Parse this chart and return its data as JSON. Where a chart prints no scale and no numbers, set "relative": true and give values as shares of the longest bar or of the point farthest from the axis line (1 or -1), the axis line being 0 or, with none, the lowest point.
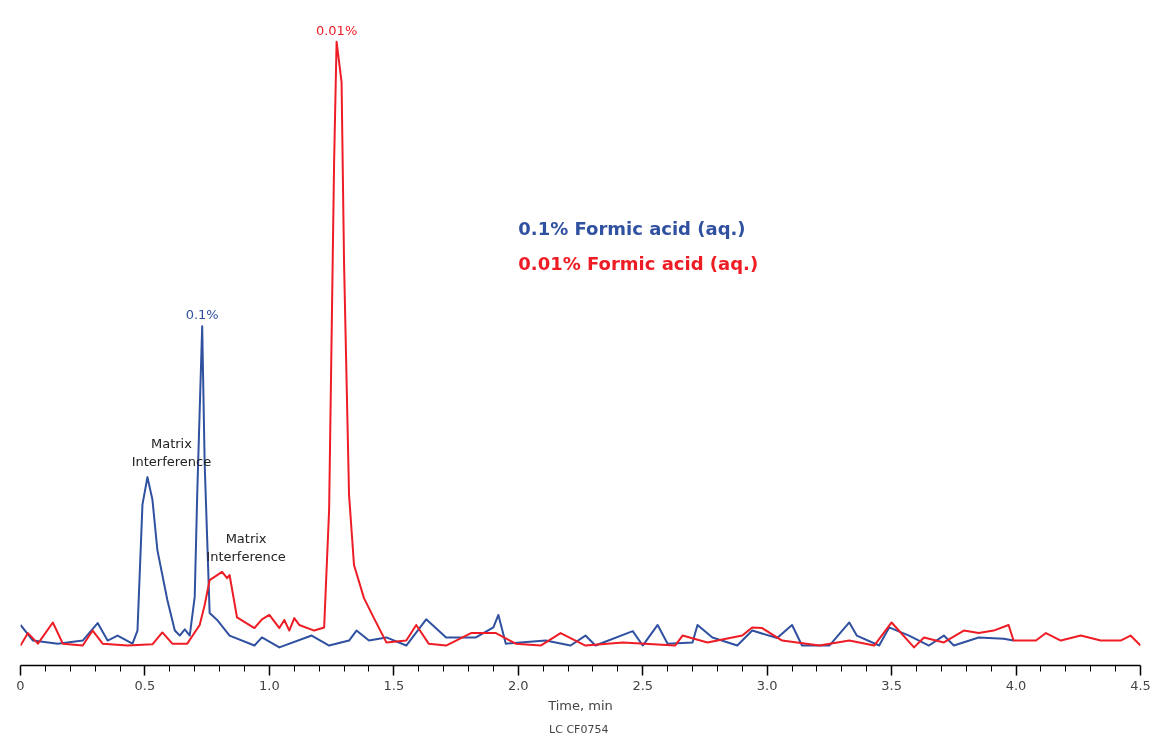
{
  "chart_data": {
    "type": "line",
    "relative": true,
    "xlabel": "Time, min",
    "xlim": [
      0,
      4.5
    ],
    "xticks": [
      0,
      {
        "value": 0.1,
        "label": null
      },
      {
        "value": 0.2,
        "label": null
      },
      {
        "value": 0.3,
        "label": null
      },
      {
        "value": 0.4,
        "label": null
      },
      0.5,
      {
        "value": 0.6,
        "label": null
      },
      {
        "value": 0.7,
        "label": null
      },
      {
        "value": 0.8,
        "label": null
      },
      {
        "value": 0.9,
        "label": null
      },
      {
        "value": 1,
        "label": "1.0"
      },
      {
        "value": 1.1,
        "label": null
      },
      {
        "value": 1.2,
        "label": null
      },
      {
        "value": 1.3,
        "label": null
      },
      {
        "value": 1.4,
        "label": null
      },
      1.5,
      {
        "value": 1.6,
        "label": null
      },
      {
        "value": 1.7,
        "label": null
      },
      {
        "value": 1.8,
        "label": null
      },
      {
        "value": 1.9,
        "label": null
      },
      {
        "value": 2,
        "label": "2.0"
      },
      {
        "value": 2.1,
        "label": null
      },
      {
        "value": 2.2,
        "label": null
      },
      {
        "value": 2.3,
        "label": null
      },
      {
        "value": 2.4,
        "label": null
      },
      2.5,
      {
        "value": 2.6,
        "label": null
      },
      {
        "value": 2.7,
        "label": null
      },
      {
        "value": 2.8,
        "label": null
      },
      {
        "value": 2.9,
        "label": null
      },
      {
        "value": 3,
        "label": "3.0"
      },
      {
        "value": 3.1,
        "label": null
      },
      {
        "value": 3.2,
        "label": null
      },
      {
        "value": 3.3,
        "label": null
      },
      {
        "value": 3.4,
        "label": null
      },
      3.5,
      {
        "value": 3.6,
        "label": null
      },
      {
        "value": 3.7,
        "label": null
      },
      {
        "value": 3.8,
        "label": null
      },
      {
        "value": 3.9,
        "label": null
      },
      {
        "value": 4,
        "label": "4.0"
      },
      {
        "value": 4.1,
        "label": null
      },
      {
        "value": 4.2,
        "label": null
      },
      {
        "value": 4.3,
        "label": null
      },
      {
        "value": 4.4,
        "label": null
      },
      4.5
    ],
    "grid": false,
    "legend": false,
    "marker": "none",
    "line_style": "solid",
    "series": [
      {
        "name": "0.1% Formic acid (aq.)",
        "color": "#3050a0",
        "x": [
          0.0,
          0.05,
          0.15,
          0.25,
          0.31,
          0.35,
          0.39,
          0.45,
          0.47,
          0.49,
          0.51,
          0.53,
          0.55,
          0.59,
          0.62,
          0.64,
          0.66,
          0.68,
          0.7,
          0.71,
          0.73,
          0.74,
          0.76,
          0.79,
          0.84,
          0.94,
          0.97,
          1.04,
          1.17,
          1.24,
          1.32,
          1.35,
          1.4,
          1.47,
          1.55,
          1.63,
          1.71,
          1.83,
          1.9,
          1.92,
          1.95,
          2.11,
          2.21,
          2.27,
          2.31,
          2.46,
          2.5,
          2.56,
          2.6,
          2.7,
          2.72,
          2.78,
          2.88,
          2.94,
          3.04,
          3.1,
          3.14,
          3.25,
          3.33,
          3.36,
          3.45,
          3.49,
          3.57,
          3.65,
          3.71,
          3.75,
          3.85,
          3.95,
          3.99
        ],
        "values": [
          0.065,
          0.04,
          0.035,
          0.04,
          0.068,
          0.04,
          0.048,
          0.035,
          0.056,
          0.258,
          0.302,
          0.266,
          0.185,
          0.105,
          0.056,
          0.048,
          0.058,
          0.048,
          0.11,
          0.274,
          0.544,
          0.323,
          0.084,
          0.073,
          0.048,
          0.032,
          0.045,
          0.029,
          0.048,
          0.032,
          0.04,
          0.056,
          0.04,
          0.045,
          0.032,
          0.074,
          0.045,
          0.045,
          0.061,
          0.081,
          0.035,
          0.04,
          0.032,
          0.048,
          0.032,
          0.055,
          0.032,
          0.065,
          0.035,
          0.037,
          0.065,
          0.045,
          0.032,
          0.056,
          0.044,
          0.065,
          0.032,
          0.032,
          0.069,
          0.048,
          0.032,
          0.061,
          0.048,
          0.032,
          0.048,
          0.032,
          0.045,
          0.043,
          0.04
        ]
      },
      {
        "name": "0.01% Formic acid (aq.)",
        "color": "#ee1c25",
        "x": [
          0.0,
          0.03,
          0.07,
          0.13,
          0.17,
          0.25,
          0.29,
          0.33,
          0.43,
          0.53,
          0.57,
          0.61,
          0.67,
          0.72,
          0.74,
          0.76,
          0.81,
          0.83,
          0.84,
          0.87,
          0.94,
          0.97,
          1.0,
          1.04,
          1.06,
          1.08,
          1.1,
          1.12,
          1.18,
          1.22,
          1.24,
          1.26,
          1.27,
          1.29,
          1.3,
          1.32,
          1.34,
          1.38,
          1.42,
          1.47,
          1.55,
          1.59,
          1.64,
          1.71,
          1.81,
          1.91,
          1.99,
          2.09,
          2.17,
          2.27,
          2.42,
          2.63,
          2.66,
          2.76,
          2.9,
          2.94,
          2.98,
          3.06,
          3.21,
          3.33,
          3.43,
          3.5,
          3.59,
          3.63,
          3.71,
          3.79,
          3.85,
          3.91,
          3.97,
          3.99,
          4.08,
          4.12,
          4.18,
          4.26,
          4.34,
          4.42,
          4.46,
          4.5
        ],
        "values": [
          0.032,
          0.052,
          0.035,
          0.069,
          0.035,
          0.032,
          0.056,
          0.035,
          0.032,
          0.034,
          0.053,
          0.035,
          0.035,
          0.065,
          0.097,
          0.137,
          0.15,
          0.14,
          0.145,
          0.077,
          0.06,
          0.074,
          0.081,
          0.06,
          0.073,
          0.056,
          0.076,
          0.065,
          0.056,
          0.061,
          0.25,
          0.806,
          1.0,
          0.935,
          0.645,
          0.274,
          0.161,
          0.108,
          0.076,
          0.037,
          0.04,
          0.065,
          0.035,
          0.032,
          0.052,
          0.052,
          0.035,
          0.032,
          0.052,
          0.032,
          0.037,
          0.032,
          0.048,
          0.037,
          0.048,
          0.061,
          0.06,
          0.04,
          0.032,
          0.04,
          0.032,
          0.069,
          0.029,
          0.045,
          0.037,
          0.056,
          0.052,
          0.056,
          0.065,
          0.04,
          0.04,
          0.052,
          0.04,
          0.048,
          0.04,
          0.04,
          0.048,
          0.032
        ]
      }
    ],
    "annotations": [
      {
        "text": "0.01%",
        "x": 1.27,
        "y": 1.0
      },
      {
        "text": "0.1%",
        "x": 0.73,
        "y": 0.544
      },
      {
        "text": "Matrix\nInterference",
        "x": 0.51,
        "y": 0.302
      },
      {
        "text": "Matrix\nInterference",
        "x": 0.81,
        "y": 0.15
      },
      "LC  CF0754"
    ]
  }
}
